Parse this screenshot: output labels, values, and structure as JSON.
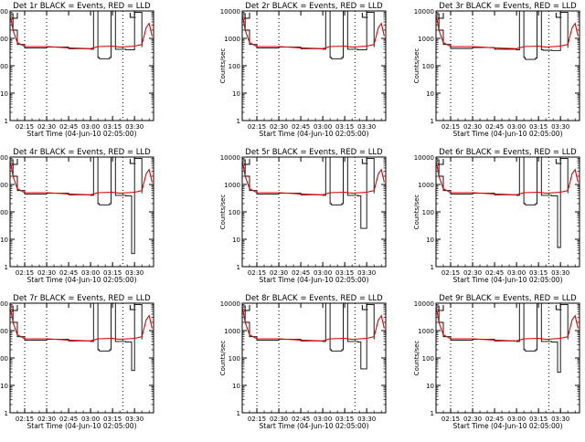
{
  "colors": {
    "events": "#000000",
    "lld": "#dd0000",
    "axes": "#000000",
    "background": "#ffffff"
  },
  "chart_data": [
    {
      "type": "line",
      "title": "Det 1r BLACK = Events, RED = LLD",
      "xlabel": "Start Time (04-Jun-10 02:05:00)",
      "ylabel": "Counts/sec",
      "yscale": "log",
      "ylim": [
        1,
        10000
      ],
      "y_ticks": [
        "1",
        "10",
        "100",
        "1000",
        "10000"
      ],
      "x_ticks": [
        "02:15",
        "02:30",
        "02:45",
        "03:00",
        "03:15",
        "03:30"
      ],
      "x_range": [
        "02:05",
        "03:43"
      ],
      "series": [
        {
          "name": "Events",
          "color": "#000000",
          "x": [
            "02:05",
            "02:07",
            "02:10",
            "02:15",
            "02:30",
            "02:45",
            "03:00",
            "03:02",
            "03:05",
            "03:06",
            "03:13",
            "03:14",
            "03:17",
            "03:18",
            "03:24",
            "03:30",
            "03:35"
          ],
          "values": [
            8000,
            2000,
            600,
            450,
            480,
            420,
            400,
            10000,
            200,
            180,
            200,
            10000,
            400,
            400,
            380,
            9000,
            480
          ]
        },
        {
          "name": "LLD",
          "color": "#dd0000",
          "x": [
            "02:05",
            "02:07",
            "02:10",
            "02:15",
            "02:30",
            "02:45",
            "03:00",
            "03:05",
            "03:15",
            "03:20",
            "03:30",
            "03:35",
            "03:38",
            "03:40",
            "03:42"
          ],
          "values": [
            8000,
            2000,
            700,
            500,
            500,
            450,
            420,
            500,
            520,
            480,
            520,
            600,
            2500,
            3500,
            1200
          ]
        }
      ]
    },
    {
      "type": "line",
      "title": "Det 2r BLACK = Events, RED = LLD",
      "xlabel": "Start Time (04-Jun-10 02:05:00)",
      "ylabel": "Counts/sec",
      "yscale": "log",
      "ylim": [
        1,
        10000
      ],
      "y_ticks": [
        "1",
        "10",
        "100",
        "1000",
        "10000"
      ],
      "x_ticks": [
        "02:15",
        "02:30",
        "02:45",
        "03:00",
        "03:15",
        "03:30"
      ],
      "x_range": [
        "02:05",
        "03:43"
      ],
      "series": [
        {
          "name": "Events",
          "color": "#000000",
          "x": [
            "02:05",
            "02:07",
            "02:10",
            "02:15",
            "02:30",
            "02:45",
            "03:00",
            "03:02",
            "03:05",
            "03:06",
            "03:13",
            "03:14",
            "03:17",
            "03:18",
            "03:24",
            "03:30",
            "03:35"
          ],
          "values": [
            8000,
            2000,
            600,
            450,
            480,
            420,
            400,
            10000,
            200,
            180,
            200,
            10000,
            400,
            400,
            380,
            9000,
            480
          ]
        },
        {
          "name": "LLD",
          "color": "#dd0000",
          "x": [
            "02:05",
            "02:07",
            "02:10",
            "02:15",
            "02:30",
            "02:45",
            "03:00",
            "03:05",
            "03:15",
            "03:20",
            "03:30",
            "03:35",
            "03:38",
            "03:40",
            "03:42"
          ],
          "values": [
            8000,
            2000,
            700,
            500,
            500,
            450,
            420,
            500,
            520,
            480,
            520,
            600,
            2500,
            3500,
            1200
          ]
        }
      ]
    },
    {
      "type": "line",
      "title": "Det 3r BLACK = Events, RED = LLD",
      "xlabel": "Start Time (04-Jun-10 02:05:00)",
      "ylabel": "Counts/sec",
      "yscale": "log",
      "ylim": [
        1,
        10000
      ],
      "y_ticks": [
        "1",
        "10",
        "100",
        "1000",
        "10000"
      ],
      "x_ticks": [
        "02:15",
        "02:30",
        "02:45",
        "03:00",
        "03:15",
        "03:30"
      ],
      "x_range": [
        "02:05",
        "03:43"
      ],
      "series": [
        {
          "name": "Events",
          "color": "#000000",
          "x": [
            "02:05",
            "02:07",
            "02:10",
            "02:15",
            "02:30",
            "02:45",
            "03:00",
            "03:02",
            "03:05",
            "03:06",
            "03:13",
            "03:14",
            "03:17",
            "03:18",
            "03:24",
            "03:30",
            "03:35"
          ],
          "values": [
            8000,
            2000,
            600,
            430,
            460,
            400,
            380,
            10000,
            200,
            170,
            190,
            10000,
            380,
            370,
            360,
            9000,
            450
          ]
        },
        {
          "name": "LLD",
          "color": "#dd0000",
          "x": [
            "02:05",
            "02:07",
            "02:10",
            "02:15",
            "02:30",
            "02:45",
            "03:00",
            "03:05",
            "03:15",
            "03:20",
            "03:30",
            "03:35",
            "03:38",
            "03:40",
            "03:42"
          ],
          "values": [
            8000,
            2000,
            700,
            500,
            500,
            450,
            420,
            500,
            520,
            480,
            520,
            600,
            2500,
            3500,
            1200
          ]
        }
      ]
    },
    {
      "type": "line",
      "title": "Det 4r BLACK = Events, RED = LLD",
      "xlabel": "Start Time (04-Jun-10 02:05:00)",
      "ylabel": "Counts/sec",
      "yscale": "log",
      "ylim": [
        1,
        10000
      ],
      "y_ticks": [
        "1",
        "10",
        "100",
        "1000",
        "10000"
      ],
      "x_ticks": [
        "02:15",
        "02:30",
        "02:45",
        "03:00",
        "03:15",
        "03:30"
      ],
      "x_range": [
        "02:05",
        "03:43"
      ],
      "series": [
        {
          "name": "Events",
          "color": "#000000",
          "x": [
            "02:05",
            "02:07",
            "02:10",
            "02:15",
            "02:30",
            "02:45",
            "03:00",
            "03:02",
            "03:05",
            "03:06",
            "03:13",
            "03:14",
            "03:17",
            "03:18",
            "03:24",
            "03:27",
            "03:28",
            "03:30",
            "03:35"
          ],
          "values": [
            8000,
            2000,
            600,
            450,
            480,
            420,
            400,
            10000,
            200,
            180,
            200,
            10000,
            400,
            400,
            380,
            380,
            3,
            9000,
            480
          ]
        },
        {
          "name": "LLD",
          "color": "#dd0000",
          "x": [
            "02:05",
            "02:07",
            "02:10",
            "02:15",
            "02:30",
            "02:45",
            "03:00",
            "03:05",
            "03:15",
            "03:20",
            "03:30",
            "03:35",
            "03:38",
            "03:40",
            "03:42"
          ],
          "values": [
            8000,
            2000,
            700,
            500,
            500,
            450,
            420,
            500,
            520,
            480,
            520,
            600,
            2500,
            3500,
            1200
          ]
        }
      ]
    },
    {
      "type": "line",
      "title": "Det 5r BLACK = Events, RED = LLD",
      "xlabel": "Start Time (04-Jun-10 02:05:00)",
      "ylabel": "Counts/sec",
      "yscale": "log",
      "ylim": [
        1,
        10000
      ],
      "y_ticks": [
        "1",
        "10",
        "100",
        "1000",
        "10000"
      ],
      "x_ticks": [
        "02:15",
        "02:30",
        "02:45",
        "03:00",
        "03:15",
        "03:30"
      ],
      "x_range": [
        "02:05",
        "03:43"
      ],
      "series": [
        {
          "name": "Events",
          "color": "#000000",
          "x": [
            "02:05",
            "02:07",
            "02:10",
            "02:15",
            "02:30",
            "02:45",
            "03:00",
            "03:02",
            "03:05",
            "03:06",
            "03:13",
            "03:14",
            "03:17",
            "03:18",
            "03:24",
            "03:25",
            "03:26",
            "03:30",
            "03:35"
          ],
          "values": [
            8000,
            2000,
            600,
            450,
            480,
            420,
            400,
            10000,
            200,
            180,
            200,
            10000,
            400,
            400,
            380,
            380,
            25,
            9000,
            480
          ]
        },
        {
          "name": "LLD",
          "color": "#dd0000",
          "x": [
            "02:05",
            "02:07",
            "02:10",
            "02:15",
            "02:30",
            "02:45",
            "03:00",
            "03:05",
            "03:15",
            "03:20",
            "03:30",
            "03:35",
            "03:38",
            "03:40",
            "03:42"
          ],
          "values": [
            8000,
            2000,
            700,
            500,
            500,
            450,
            420,
            500,
            520,
            480,
            520,
            600,
            2500,
            3500,
            1200
          ]
        }
      ]
    },
    {
      "type": "line",
      "title": "Det 6r BLACK = Events, RED = LLD",
      "xlabel": "Start Time (04-Jun-10 02:05:00)",
      "ylabel": "Counts/sec",
      "yscale": "log",
      "ylim": [
        1,
        10000
      ],
      "y_ticks": [
        "1",
        "10",
        "100",
        "1000",
        "10000"
      ],
      "x_ticks": [
        "02:15",
        "02:30",
        "02:45",
        "03:00",
        "03:15",
        "03:30"
      ],
      "x_range": [
        "02:05",
        "03:43"
      ],
      "series": [
        {
          "name": "Events",
          "color": "#000000",
          "x": [
            "02:05",
            "02:07",
            "02:10",
            "02:15",
            "02:30",
            "02:45",
            "03:00",
            "03:02",
            "03:05",
            "03:06",
            "03:13",
            "03:14",
            "03:17",
            "03:18",
            "03:24",
            "03:27",
            "03:28",
            "03:30",
            "03:35"
          ],
          "values": [
            8000,
            2000,
            600,
            450,
            480,
            420,
            400,
            10000,
            200,
            180,
            200,
            10000,
            400,
            400,
            380,
            380,
            5,
            9000,
            480
          ]
        },
        {
          "name": "LLD",
          "color": "#dd0000",
          "x": [
            "02:05",
            "02:07",
            "02:10",
            "02:15",
            "02:30",
            "02:45",
            "03:00",
            "03:05",
            "03:15",
            "03:20",
            "03:30",
            "03:35",
            "03:38",
            "03:40",
            "03:42"
          ],
          "values": [
            8000,
            2000,
            700,
            500,
            500,
            450,
            420,
            500,
            520,
            480,
            520,
            600,
            2500,
            3500,
            1200
          ]
        }
      ]
    },
    {
      "type": "line",
      "title": "Det 7r BLACK = Events, RED = LLD",
      "xlabel": "Start Time (04-Jun-10 02:05:00)",
      "ylabel": "Counts/sec",
      "yscale": "log",
      "ylim": [
        1,
        10000
      ],
      "y_ticks": [
        "1",
        "10",
        "100",
        "1000",
        "10000"
      ],
      "x_ticks": [
        "02:15",
        "02:30",
        "02:45",
        "03:00",
        "03:15",
        "03:30"
      ],
      "x_range": [
        "02:05",
        "03:43"
      ],
      "series": [
        {
          "name": "Events",
          "color": "#000000",
          "x": [
            "02:05",
            "02:07",
            "02:10",
            "02:15",
            "02:30",
            "02:45",
            "03:00",
            "03:02",
            "03:05",
            "03:06",
            "03:13",
            "03:14",
            "03:17",
            "03:18",
            "03:24",
            "03:27",
            "03:28",
            "03:30",
            "03:35"
          ],
          "values": [
            8000,
            2000,
            600,
            450,
            480,
            420,
            400,
            10000,
            200,
            180,
            200,
            10000,
            400,
            400,
            380,
            380,
            35,
            9000,
            480
          ]
        },
        {
          "name": "LLD",
          "color": "#dd0000",
          "x": [
            "02:05",
            "02:07",
            "02:10",
            "02:15",
            "02:30",
            "02:45",
            "03:00",
            "03:05",
            "03:15",
            "03:20",
            "03:30",
            "03:35",
            "03:38",
            "03:40",
            "03:42"
          ],
          "values": [
            8000,
            2000,
            700,
            500,
            500,
            450,
            420,
            500,
            520,
            480,
            520,
            600,
            2500,
            3500,
            1200
          ]
        }
      ]
    },
    {
      "type": "line",
      "title": "Det 8r BLACK = Events, RED = LLD",
      "xlabel": "Start Time (04-Jun-10 02:05:00)",
      "ylabel": "Counts/sec",
      "yscale": "log",
      "ylim": [
        1,
        10000
      ],
      "y_ticks": [
        "1",
        "10",
        "100",
        "1000",
        "10000"
      ],
      "x_ticks": [
        "02:15",
        "02:30",
        "02:45",
        "03:00",
        "03:15",
        "03:30"
      ],
      "x_range": [
        "02:05",
        "03:43"
      ],
      "series": [
        {
          "name": "Events",
          "color": "#000000",
          "x": [
            "02:05",
            "02:07",
            "02:10",
            "02:15",
            "02:30",
            "02:45",
            "03:00",
            "03:02",
            "03:05",
            "03:06",
            "03:13",
            "03:14",
            "03:17",
            "03:18",
            "03:24",
            "03:25",
            "03:26",
            "03:30",
            "03:35"
          ],
          "values": [
            8000,
            2000,
            600,
            450,
            480,
            420,
            400,
            10000,
            200,
            180,
            200,
            10000,
            400,
            400,
            380,
            380,
            40,
            9000,
            480
          ]
        },
        {
          "name": "LLD",
          "color": "#dd0000",
          "x": [
            "02:05",
            "02:07",
            "02:10",
            "02:15",
            "02:30",
            "02:45",
            "03:00",
            "03:05",
            "03:15",
            "03:20",
            "03:30",
            "03:35",
            "03:38",
            "03:40",
            "03:42"
          ],
          "values": [
            8000,
            2000,
            700,
            500,
            500,
            450,
            420,
            500,
            520,
            480,
            520,
            600,
            2500,
            3500,
            1200
          ]
        }
      ]
    },
    {
      "type": "line",
      "title": "Det 9r BLACK = Events, RED = LLD",
      "xlabel": "Start Time (04-Jun-10 02:05:00)",
      "ylabel": "Counts/sec",
      "yscale": "log",
      "ylim": [
        1,
        10000
      ],
      "y_ticks": [
        "1",
        "10",
        "100",
        "1000",
        "10000"
      ],
      "x_ticks": [
        "02:15",
        "02:30",
        "02:45",
        "03:00",
        "03:15",
        "03:30"
      ],
      "x_range": [
        "02:05",
        "03:43"
      ],
      "series": [
        {
          "name": "Events",
          "color": "#000000",
          "x": [
            "02:05",
            "02:07",
            "02:10",
            "02:15",
            "02:30",
            "02:45",
            "03:00",
            "03:02",
            "03:05",
            "03:06",
            "03:13",
            "03:14",
            "03:17",
            "03:18",
            "03:24",
            "03:27",
            "03:28",
            "03:30",
            "03:35"
          ],
          "values": [
            8000,
            2000,
            600,
            450,
            480,
            420,
            400,
            10000,
            200,
            180,
            200,
            10000,
            400,
            400,
            380,
            380,
            30,
            9000,
            480
          ]
        },
        {
          "name": "LLD",
          "color": "#dd0000",
          "x": [
            "02:05",
            "02:07",
            "02:10",
            "02:15",
            "02:30",
            "02:45",
            "03:00",
            "03:05",
            "03:15",
            "03:20",
            "03:30",
            "03:35",
            "03:38",
            "03:40",
            "03:42"
          ],
          "values": [
            8000,
            2000,
            700,
            500,
            500,
            450,
            420,
            500,
            520,
            480,
            520,
            600,
            2500,
            3500,
            1200
          ]
        }
      ]
    }
  ]
}
